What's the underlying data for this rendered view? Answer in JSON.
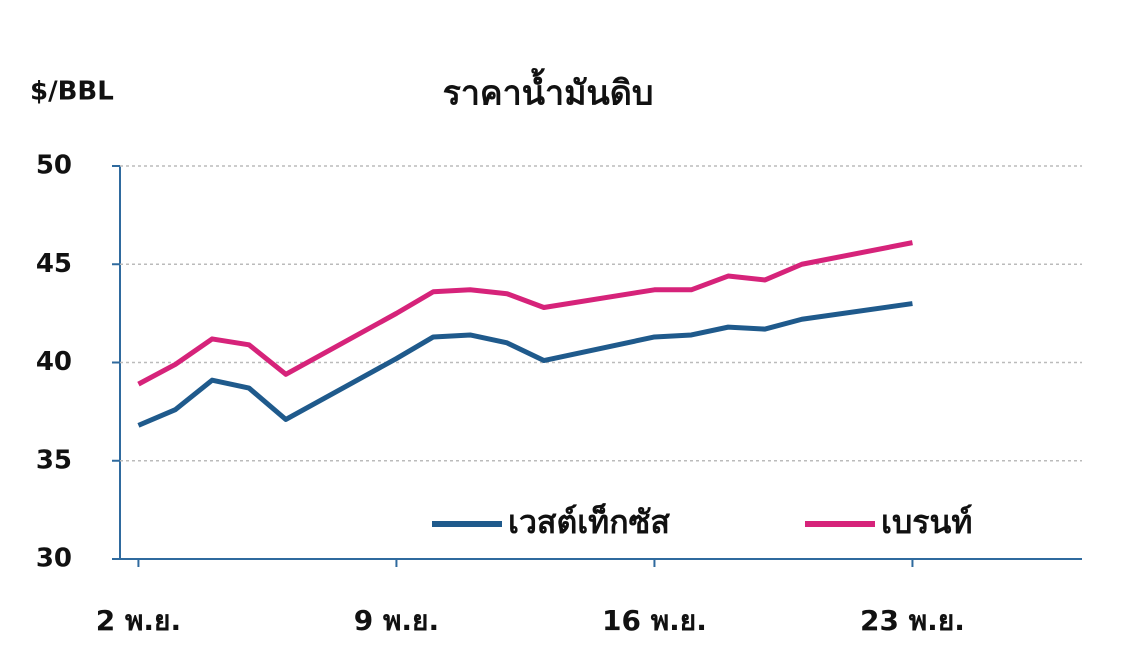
{
  "chart_data": {
    "type": "line",
    "title": "ราคาน้ำมันดิบ",
    "y_label": "$/BBL",
    "x": [
      2,
      3,
      4,
      5,
      6,
      9,
      10,
      11,
      12,
      13,
      16,
      17,
      18,
      19,
      20,
      23
    ],
    "series": [
      {
        "name": "เวสต์เท็กซัส",
        "color": "#1f5a8c",
        "values": [
          36.8,
          37.6,
          39.1,
          38.7,
          37.1,
          40.2,
          41.3,
          41.4,
          41.0,
          40.1,
          41.3,
          41.4,
          41.8,
          41.7,
          42.2,
          43.0
        ]
      },
      {
        "name": "เบรนท์",
        "color": "#d6237a",
        "values": [
          38.9,
          39.9,
          41.2,
          40.9,
          39.4,
          42.5,
          43.6,
          43.7,
          43.5,
          42.8,
          43.7,
          43.7,
          44.4,
          44.2,
          45.0,
          46.1
        ]
      }
    ],
    "xlim": [
      1.5,
      27.6
    ],
    "xticks": [
      {
        "value": 2,
        "label": "2 พ.ย."
      },
      {
        "value": 9,
        "label": "9 พ.ย."
      },
      {
        "value": 16,
        "label": "16 พ.ย."
      },
      {
        "value": 23,
        "label": "23 พ.ย."
      }
    ],
    "ylim": [
      30,
      50
    ],
    "yticks": [
      30,
      35,
      40,
      45,
      50
    ],
    "grid": true
  }
}
